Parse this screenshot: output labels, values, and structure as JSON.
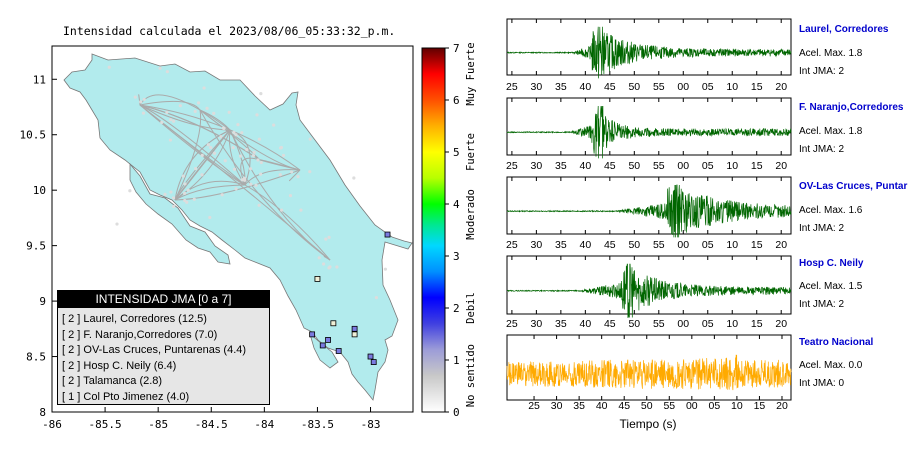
{
  "map": {
    "title": "Intensidad calculada el 2023/08/06_05:33:32_p.m.",
    "x_ticks": [
      "-86",
      "-85.5",
      "-85",
      "-84.5",
      "-84",
      "-83.5",
      "-83"
    ],
    "y_ticks": [
      "11",
      "10.5",
      "10",
      "9.5",
      "9",
      "8.5",
      "8"
    ],
    "land_color": "#b2ebed",
    "legend": {
      "header": "INTENSIDAD JMA [0 a 7]",
      "items": [
        "[ 2 ]  Laurel, Corredores (12.5)",
        "[ 2 ]  F. Naranjo,Corredores (7.0)",
        "[ 2 ]  OV-Las Cruces, Puntarenas (4.4)",
        "[ 2 ]  Hosp C. Neily (6.4)",
        "[ 2 ]  Talamanca (2.8)",
        "[ 1 ]  Col Pto Jimenez (4.0)"
      ]
    }
  },
  "colorbar": {
    "ticks": [
      "7",
      "6",
      "5",
      "4",
      "3",
      "2",
      "1",
      "0"
    ],
    "categories": [
      "Muy Fuerte",
      "Fuerte",
      "Moderado",
      "Debil",
      "No sentido"
    ]
  },
  "stations": [
    {
      "name": "Laurel, Corredores",
      "accel": "Acel. Max. 1.8",
      "jma": "Int JMA: 2",
      "color": "#006600",
      "ticks": [
        "25",
        "30",
        "35",
        "40",
        "45",
        "50",
        "55",
        "00",
        "05",
        "10",
        "15",
        "20"
      ]
    },
    {
      "name": "F. Naranjo,Corredores",
      "accel": "Acel. Max. 1.8",
      "jma": "Int JMA: 2",
      "color": "#006600",
      "ticks": [
        "25",
        "30",
        "35",
        "40",
        "45",
        "50",
        "55",
        "00",
        "05",
        "10",
        "15",
        "20"
      ]
    },
    {
      "name": "OV-Las Cruces, Puntar",
      "accel": "Acel. Max. 1.6",
      "jma": "Int JMA: 2",
      "color": "#006600",
      "ticks": [
        "25",
        "30",
        "35",
        "40",
        "45",
        "50",
        "55",
        "00",
        "05",
        "10",
        "15",
        "20"
      ]
    },
    {
      "name": "Hosp C. Neily",
      "accel": "Acel. Max. 1.5",
      "jma": "Int JMA: 2",
      "color": "#006600",
      "ticks": [
        "25",
        "30",
        "35",
        "40",
        "45",
        "50",
        "55",
        "00",
        "05",
        "10",
        "15",
        "20"
      ]
    },
    {
      "name": "Teatro Nacional",
      "accel": "Acel. Max. 0.0",
      "jma": "Int JMA: 0",
      "color": "#ffaa00",
      "ticks": [
        "25",
        "30",
        "35",
        "40",
        "45",
        "50",
        "55",
        "00",
        "05",
        "10",
        "15",
        "20"
      ]
    }
  ],
  "waveform_xlabel": "Tiempo (s)",
  "chart_data": [
    {
      "type": "scatter",
      "title": "Intensidad calculada el 2023/08/06_05:33:32_p.m.",
      "xlabel": "",
      "ylabel": "",
      "xlim": [
        -86,
        -82.6
      ],
      "ylim": [
        8,
        11.3
      ],
      "series": [
        {
          "x": [
            -83.55,
            -83.4
          ],
          "y": [
            8.7,
            8.65
          ],
          "intensity": 2
        },
        {
          "x": [
            -83.45,
            -83.3
          ],
          "y": [
            8.6,
            8.55
          ],
          "intensity": 2
        },
        {
          "x": [
            -83.15,
            -83.0
          ],
          "y": [
            8.75,
            8.5
          ],
          "intensity": 2
        },
        {
          "x": [
            -82.97,
            -82.84
          ],
          "y": [
            8.45,
            9.6
          ],
          "intensity": 2
        },
        {
          "x": [
            -83.15,
            -83.35,
            -83.5
          ],
          "y": [
            8.7,
            8.8,
            9.2
          ],
          "intensity": 1
        }
      ]
    },
    {
      "type": "heatmap",
      "title": "",
      "ylim": [
        0,
        7
      ],
      "stops": [
        {
          "v": 0,
          "c": "#ffffff"
        },
        {
          "v": 0.7,
          "c": "#c8c8c8"
        },
        {
          "v": 1.2,
          "c": "#9c9cd8"
        },
        {
          "v": 1.7,
          "c": "#4040e0"
        },
        {
          "v": 2.2,
          "c": "#0000ff"
        },
        {
          "v": 2.7,
          "c": "#0090ff"
        },
        {
          "v": 3.2,
          "c": "#00d8ff"
        },
        {
          "v": 3.6,
          "c": "#00e890"
        },
        {
          "v": 4.0,
          "c": "#00ff00"
        },
        {
          "v": 4.5,
          "c": "#b8ff00"
        },
        {
          "v": 5.0,
          "c": "#ffff00"
        },
        {
          "v": 5.5,
          "c": "#ffb000"
        },
        {
          "v": 6.0,
          "c": "#ff5000"
        },
        {
          "v": 6.5,
          "c": "#ff0000"
        },
        {
          "v": 7,
          "c": "#600000"
        }
      ]
    },
    {
      "type": "line",
      "title": "Laurel, Corredores",
      "onset": 37.5,
      "peak": 42.5,
      "decay": 6,
      "amp": 1.0,
      "noise": 0.02,
      "xlim": [
        24,
        82
      ]
    },
    {
      "type": "line",
      "title": "F. Naranjo,Corredores",
      "onset": 37,
      "peak": 42.5,
      "decay": 3,
      "amp": 1.0,
      "noise": 0.02,
      "xlim": [
        24,
        82
      ]
    },
    {
      "type": "line",
      "title": "OV-Las Cruces, Puntar",
      "onset": 46.5,
      "peak": 58,
      "decay": 10,
      "amp": 1.0,
      "noise": 0.02,
      "xlim": [
        24,
        82
      ]
    },
    {
      "type": "line",
      "title": "Hosp C. Neily",
      "onset": 39,
      "peak": 48.5,
      "decay": 6,
      "amp": 1.0,
      "noise": 0.02,
      "xlim": [
        24,
        82
      ]
    },
    {
      "type": "line",
      "title": "Teatro Nacional",
      "onset": 20,
      "peak": 71,
      "decay": 6,
      "amp": 0.5,
      "noise": 0.4,
      "xlim": [
        19,
        82
      ]
    }
  ]
}
